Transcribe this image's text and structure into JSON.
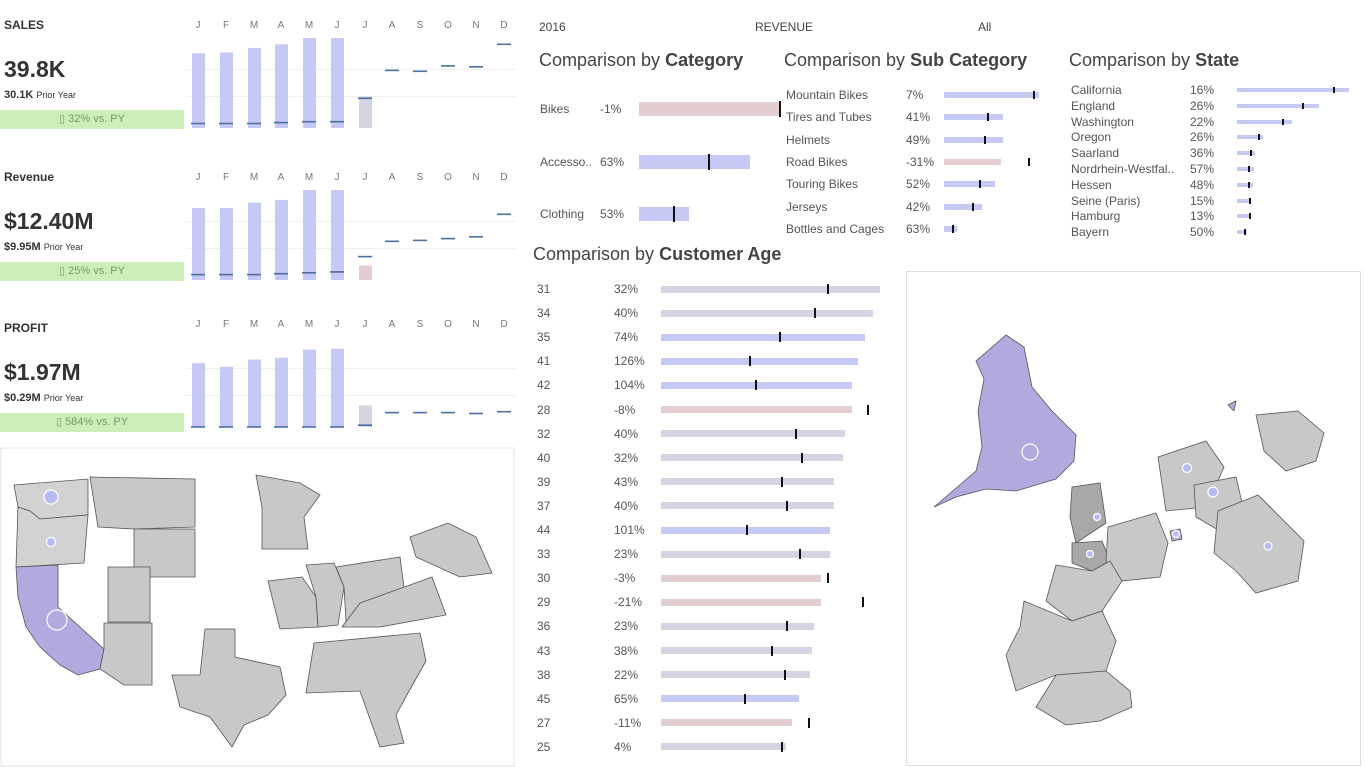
{
  "header": {
    "year": "2016",
    "measure": "REVENUE",
    "filter": "All"
  },
  "colors": {
    "bar_cur": "#c7c9f5",
    "bar_future": "#d4d4e3",
    "bar_neg": "#e3cdd0",
    "badge_bg": "#cdeeb9",
    "badge_text": "#6aa05a",
    "py_marker": "#4a6fa0",
    "map_fill": "#c8c8c8",
    "map_highlight": "#b3a9de"
  },
  "months": [
    "J",
    "F",
    "M",
    "A",
    "M",
    "J",
    "J",
    "A",
    "S",
    "O",
    "N",
    "D"
  ],
  "kpis": [
    {
      "title": "SALES",
      "value": "39.8K",
      "prior_value": "30.1K",
      "prior_label": "Prior Year",
      "badge": "▯ 32% vs. PY",
      "cur": [
        0.83,
        0.84,
        0.89,
        0.93,
        1.0,
        1.0,
        0.35
      ],
      "py": [
        0.05,
        0.05,
        0.05,
        0.06,
        0.07,
        0.07,
        0.33,
        0.64,
        0.63,
        0.69,
        0.68,
        0.93
      ]
    },
    {
      "title": "Revenue",
      "value": "$12.40M",
      "prior_value": "$9.95M",
      "prior_label": "Prior Year",
      "badge": "▯ 25% vs. PY",
      "cur": [
        0.8,
        0.8,
        0.86,
        0.89,
        1.0,
        1.0,
        0.16
      ],
      "py": [
        0.06,
        0.06,
        0.06,
        0.07,
        0.08,
        0.09,
        0.26,
        0.43,
        0.44,
        0.46,
        0.48,
        0.73
      ]
    },
    {
      "title": "PROFIT",
      "value": "$1.97M",
      "prior_value": "$0.29M",
      "prior_label": "Prior Year",
      "badge": "▯ 584% vs. PY",
      "cur": [
        0.71,
        0.67,
        0.75,
        0.77,
        0.86,
        0.87,
        0.24
      ],
      "py": [
        0.0,
        0.0,
        0.0,
        0.0,
        0.0,
        0.0,
        0.02,
        0.16,
        0.16,
        0.16,
        0.15,
        0.17
      ]
    }
  ],
  "category": {
    "title_pre": "Comparison by",
    "title_bold": "Category",
    "rows": [
      {
        "label": "Bikes",
        "pct": "-1%",
        "value": 1.0,
        "py": 1.0,
        "neg": true
      },
      {
        "label": "Accesso..",
        "pct": "63%",
        "value": 0.79,
        "py": 0.49,
        "neg": false
      },
      {
        "label": "Clothing",
        "pct": "53%",
        "value": 0.36,
        "py": 0.24,
        "neg": false
      }
    ]
  },
  "subcategory": {
    "title_pre": "Comparison by",
    "title_bold": "Sub Category",
    "rows": [
      {
        "label": "Mountain Bikes",
        "pct": "7%",
        "value": 0.99,
        "py": 0.93,
        "neg": false
      },
      {
        "label": "Tires and Tubes",
        "pct": "41%",
        "value": 0.61,
        "py": 0.45,
        "neg": false
      },
      {
        "label": "Helmets",
        "pct": "49%",
        "value": 0.61,
        "py": 0.42,
        "neg": false
      },
      {
        "label": "Road Bikes",
        "pct": "-31%",
        "value": 0.59,
        "py": 0.87,
        "neg": true
      },
      {
        "label": "Touring Bikes",
        "pct": "52%",
        "value": 0.53,
        "py": 0.36,
        "neg": false
      },
      {
        "label": "Jerseys",
        "pct": "42%",
        "value": 0.4,
        "py": 0.29,
        "neg": false
      },
      {
        "label": "Bottles and Cages",
        "pct": "63%",
        "value": 0.14,
        "py": 0.08,
        "neg": false
      }
    ]
  },
  "state": {
    "title_pre": "Comparison by",
    "title_bold": "State",
    "rows": [
      {
        "label": "California",
        "pct": "16%",
        "value": 1.0,
        "py": 0.86,
        "neg": false
      },
      {
        "label": "England",
        "pct": "26%",
        "value": 0.73,
        "py": 0.58,
        "neg": false
      },
      {
        "label": "Washington",
        "pct": "22%",
        "value": 0.49,
        "py": 0.4,
        "neg": false
      },
      {
        "label": "Oregon",
        "pct": "26%",
        "value": 0.23,
        "py": 0.19,
        "neg": false
      },
      {
        "label": "Saarland",
        "pct": "36%",
        "value": 0.16,
        "py": 0.12,
        "neg": false
      },
      {
        "label": "Nordrhein-Westfal..",
        "pct": "57%",
        "value": 0.15,
        "py": 0.1,
        "neg": false
      },
      {
        "label": "Hessen",
        "pct": "48%",
        "value": 0.14,
        "py": 0.1,
        "neg": false
      },
      {
        "label": "Seine (Paris)",
        "pct": "15%",
        "value": 0.12,
        "py": 0.11,
        "neg": false
      },
      {
        "label": "Hamburg",
        "pct": "13%",
        "value": 0.12,
        "py": 0.11,
        "neg": false
      },
      {
        "label": "Bayern",
        "pct": "50%",
        "value": 0.09,
        "py": 0.06,
        "neg": false
      }
    ]
  },
  "age": {
    "title_pre": "Comparison by",
    "title_bold": "Customer Age",
    "rows": [
      {
        "label": "31",
        "pct": "32%",
        "value": 1.0,
        "py": 0.76,
        "neg": false
      },
      {
        "label": "34",
        "pct": "40%",
        "value": 0.97,
        "py": 0.7,
        "neg": false
      },
      {
        "label": "35",
        "pct": "74%",
        "value": 0.93,
        "py": 0.54,
        "neg": false
      },
      {
        "label": "41",
        "pct": "126%",
        "value": 0.9,
        "py": 0.4,
        "neg": false
      },
      {
        "label": "42",
        "pct": "104%",
        "value": 0.87,
        "py": 0.43,
        "neg": false
      },
      {
        "label": "28",
        "pct": "-8%",
        "value": 0.87,
        "py": 0.94,
        "neg": true
      },
      {
        "label": "32",
        "pct": "40%",
        "value": 0.84,
        "py": 0.61,
        "neg": false
      },
      {
        "label": "40",
        "pct": "32%",
        "value": 0.83,
        "py": 0.64,
        "neg": false
      },
      {
        "label": "39",
        "pct": "43%",
        "value": 0.79,
        "py": 0.55,
        "neg": false
      },
      {
        "label": "37",
        "pct": "40%",
        "value": 0.79,
        "py": 0.57,
        "neg": false
      },
      {
        "label": "44",
        "pct": "101%",
        "value": 0.77,
        "py": 0.39,
        "neg": false
      },
      {
        "label": "33",
        "pct": "23%",
        "value": 0.77,
        "py": 0.63,
        "neg": false
      },
      {
        "label": "30",
        "pct": "-3%",
        "value": 0.73,
        "py": 0.76,
        "neg": true
      },
      {
        "label": "29",
        "pct": "-21%",
        "value": 0.73,
        "py": 0.92,
        "neg": true
      },
      {
        "label": "36",
        "pct": "23%",
        "value": 0.7,
        "py": 0.57,
        "neg": false
      },
      {
        "label": "43",
        "pct": "38%",
        "value": 0.69,
        "py": 0.5,
        "neg": false
      },
      {
        "label": "38",
        "pct": "22%",
        "value": 0.68,
        "py": 0.56,
        "neg": false
      },
      {
        "label": "45",
        "pct": "65%",
        "value": 0.63,
        "py": 0.38,
        "neg": false
      },
      {
        "label": "27",
        "pct": "-11%",
        "value": 0.6,
        "py": 0.67,
        "neg": true
      },
      {
        "label": "25",
        "pct": "4%",
        "value": 0.57,
        "py": 0.55,
        "neg": false
      }
    ]
  }
}
